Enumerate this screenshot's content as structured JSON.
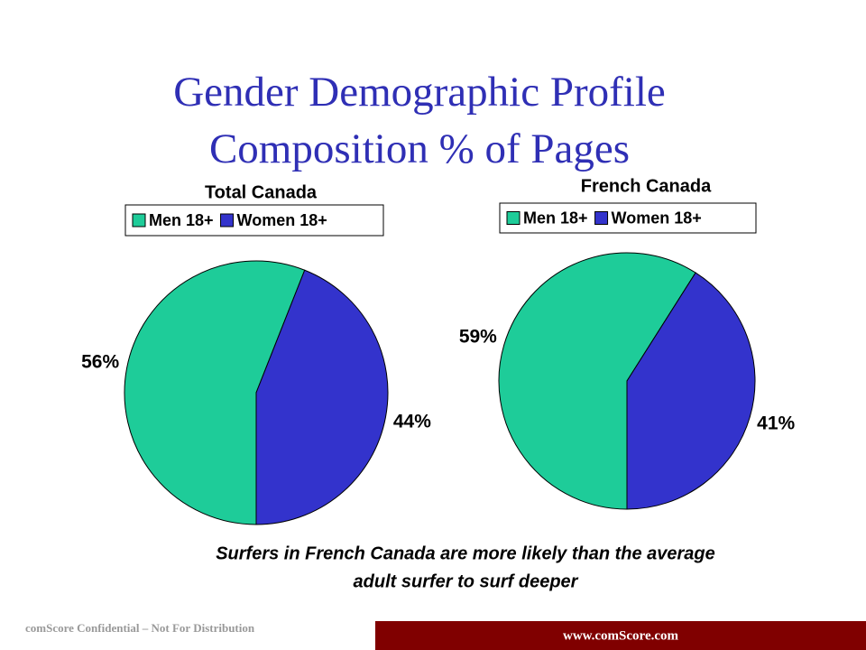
{
  "slide": {
    "title_lines": [
      "Gender Demographic Profile",
      "Composition % of Pages"
    ],
    "caption_lines": [
      "Surfers in French Canada are  more likely than the average",
      "adult surfer to surf deeper"
    ],
    "footer_left": "comScore Confidential – Not For Distribution",
    "footer_right": "www.comScore.com"
  },
  "chart_data": [
    {
      "type": "pie",
      "title": "Total Canada",
      "labels": [
        "Men 18+",
        "Women 18+"
      ],
      "values": [
        56,
        44
      ],
      "value_labels": [
        "56%",
        "44%"
      ],
      "colors": [
        "#1ecc99",
        "#3333cc"
      ]
    },
    {
      "type": "pie",
      "title": "French Canada",
      "labels": [
        "Men 18+",
        "Women 18+"
      ],
      "values": [
        59,
        41
      ],
      "value_labels": [
        "59%",
        "41%"
      ],
      "colors": [
        "#1ecc99",
        "#3333cc"
      ]
    }
  ]
}
